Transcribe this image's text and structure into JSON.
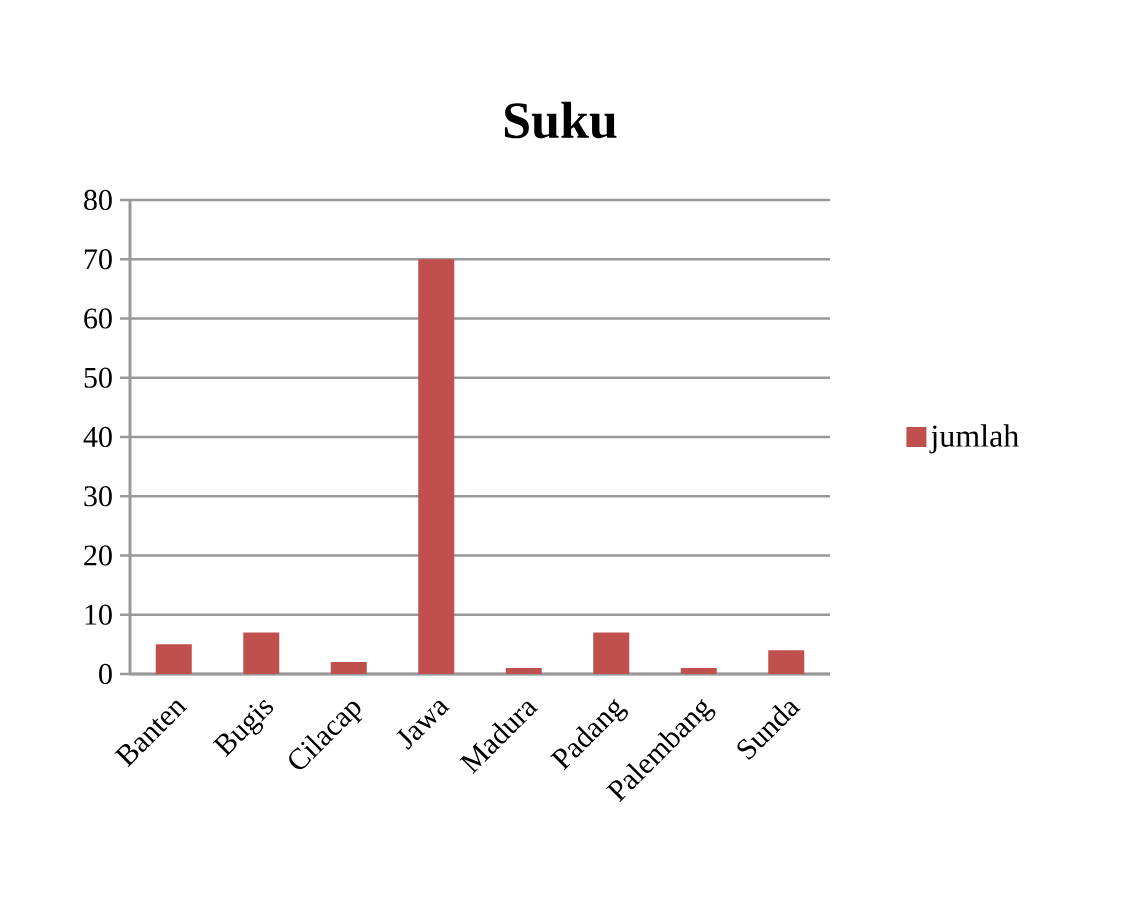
{
  "chart_data": {
    "type": "bar",
    "title": "Suku",
    "categories": [
      "Banten",
      "Bugis",
      "Cilacap",
      "Jawa",
      "Madura",
      "Padang",
      "Palembang",
      "Sunda"
    ],
    "series": [
      {
        "name": "jumlah",
        "color": "#c0504d",
        "values": [
          5,
          7,
          2,
          70,
          1,
          7,
          1,
          4
        ]
      }
    ],
    "ylim": [
      0,
      80
    ],
    "yticks": [
      0,
      10,
      20,
      30,
      40,
      50,
      60,
      70,
      80
    ],
    "grid": "y",
    "legend": "right"
  }
}
